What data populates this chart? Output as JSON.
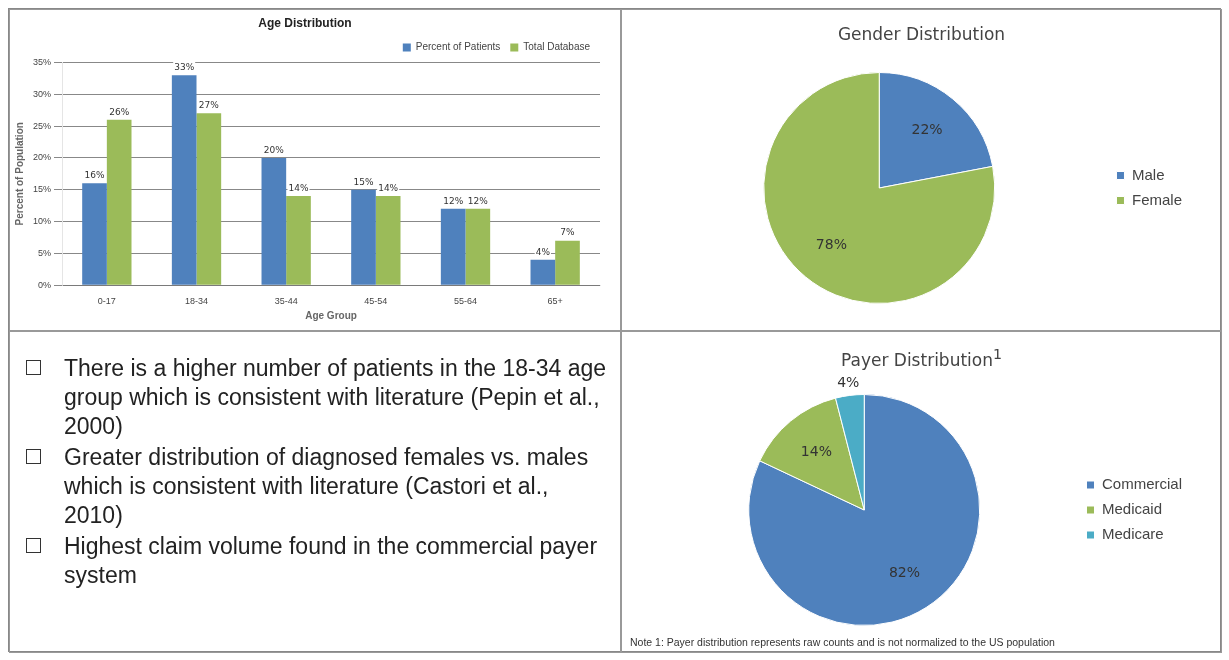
{
  "chart_data": [
    {
      "type": "bar",
      "title": "Age Distribution",
      "xlabel": "Age Group",
      "ylabel": "Percent of Population",
      "categories": [
        "0-17",
        "18-34",
        "35-44",
        "45-54",
        "55-64",
        "65+"
      ],
      "series": [
        {
          "name": "Percent of Patients",
          "color": "#4f81bd",
          "values": [
            16,
            33,
            20,
            15,
            12,
            4
          ],
          "value_labels": [
            "16%",
            "33%",
            "20%",
            "15%",
            "12%",
            "4%"
          ]
        },
        {
          "name": "Total Database",
          "color": "#9bbb59",
          "values": [
            26,
            27,
            14,
            14,
            12,
            7
          ],
          "value_labels": [
            "26%",
            "27%",
            "14%",
            "14%",
            "12%",
            "7%"
          ]
        }
      ],
      "ylim": [
        0,
        35
      ],
      "yticks": [
        {
          "value": 0,
          "label": "0%"
        },
        {
          "value": 5,
          "label": "5%"
        },
        {
          "value": 10,
          "label": "10%"
        },
        {
          "value": 15,
          "label": "15%"
        },
        {
          "value": 20,
          "label": "20%"
        },
        {
          "value": 25,
          "label": "25%"
        },
        {
          "value": 30,
          "label": "30%"
        },
        {
          "value": 35,
          "label": "35%"
        }
      ],
      "grid": "y",
      "legend": "top right"
    },
    {
      "type": "pie",
      "title": "Gender Distribution",
      "categories": [
        "Male",
        "Female"
      ],
      "values": [
        22,
        78
      ],
      "colors": [
        "#4f81bd",
        "#9bbb59"
      ],
      "value_labels": [
        "22%",
        "78%"
      ],
      "legend": "right"
    },
    {
      "type": "other",
      "annotations": [
        "There is a higher number of patients in the 18-34 age group which is consistent with literature (Pepin et al., 2000)",
        "Greater distribution of diagnosed females vs. males which is consistent with literature (Castori et al., 2010)",
        "Highest claim volume found in the commercial payer system"
      ]
    },
    {
      "type": "pie",
      "title": "Payer Distribution$^{1}$",
      "categories": [
        "Commercial",
        "Medicaid",
        "Medicare"
      ],
      "values": [
        82,
        14,
        4
      ],
      "colors": [
        "#4f81bd",
        "#9bbb59",
        "#4bacc6"
      ],
      "value_labels": [
        "82%",
        "14%",
        "4%"
      ],
      "legend": "right",
      "annotations": [
        "Note 1: Payer distribution represents raw counts and is not normalized to the US population"
      ]
    }
  ]
}
